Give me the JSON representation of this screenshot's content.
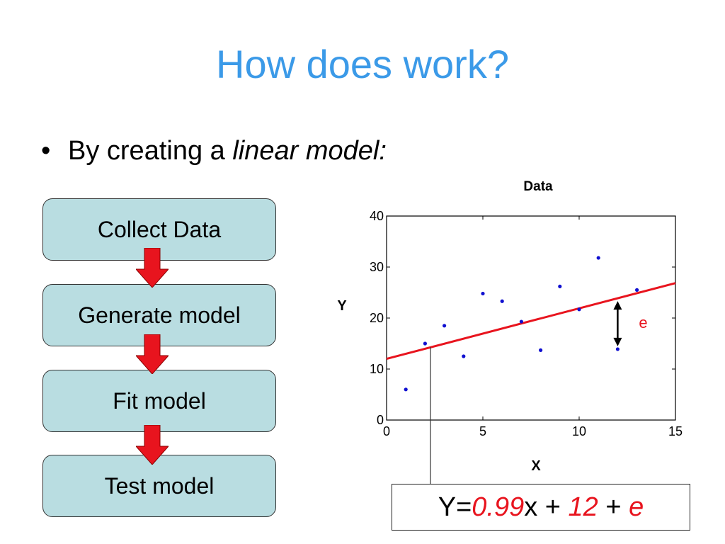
{
  "slide": {
    "title": "How does work?",
    "bullet_prefix": "By creating a ",
    "bullet_emphasis": "linear model:"
  },
  "flow": {
    "steps": [
      "Collect Data",
      "Generate model",
      "Fit model",
      "Test model"
    ],
    "arrow_color": "#e8141e",
    "box_color": "#b9dde1"
  },
  "chart_data": {
    "type": "scatter",
    "title": "Data",
    "xlabel": "X",
    "ylabel": "Y",
    "xlim": [
      0,
      15
    ],
    "ylim": [
      0,
      40
    ],
    "xticks": [
      0,
      5,
      10,
      15
    ],
    "yticks": [
      0,
      10,
      20,
      30,
      40
    ],
    "points": [
      {
        "x": 1,
        "y": 6
      },
      {
        "x": 2,
        "y": 15
      },
      {
        "x": 3,
        "y": 18.5
      },
      {
        "x": 4,
        "y": 12.5
      },
      {
        "x": 5,
        "y": 24.8
      },
      {
        "x": 6,
        "y": 23.3
      },
      {
        "x": 7,
        "y": 19.3
      },
      {
        "x": 8,
        "y": 13.7
      },
      {
        "x": 9,
        "y": 26.2
      },
      {
        "x": 10,
        "y": 21.7
      },
      {
        "x": 11,
        "y": 31.8
      },
      {
        "x": 12,
        "y": 13.9
      },
      {
        "x": 13,
        "y": 25.5
      }
    ],
    "fit_line": {
      "slope": 0.99,
      "intercept": 12,
      "color": "#e8141e"
    },
    "residual": {
      "x": 12,
      "label": "e",
      "label_color": "#e8141e"
    },
    "point_color": "#1010d0"
  },
  "equation": {
    "prefix": "Y=",
    "slope": "0.99",
    "middle": "x + ",
    "intercept": "12",
    "plus": " + ",
    "error": "e"
  }
}
